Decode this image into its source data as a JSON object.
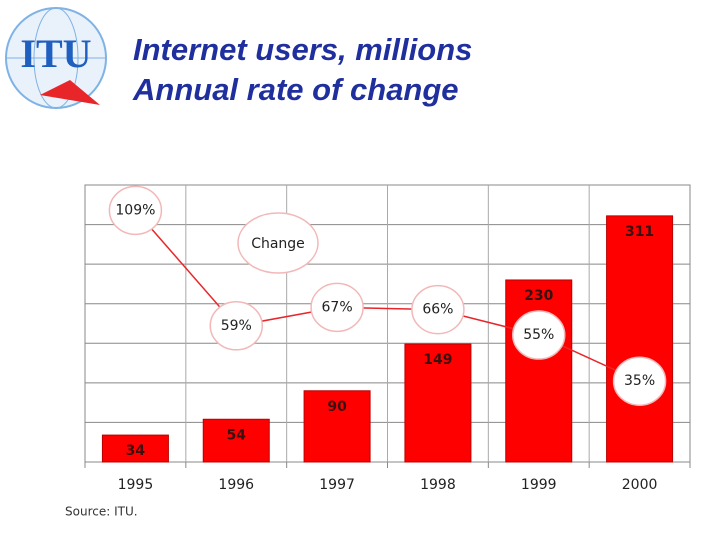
{
  "logo_text": "ITU",
  "chart_data": {
    "type": "bar",
    "title": "Internet users, millions",
    "subtitle": "Annual rate of change",
    "source": "Source: ITU.",
    "categories": [
      "1995",
      "1996",
      "1997",
      "1998",
      "1999",
      "2000"
    ],
    "series": [
      {
        "type": "bar",
        "color": "#ff0000",
        "values": [
          34,
          54,
          90,
          149,
          230,
          311
        ]
      },
      {
        "type": "line",
        "name": "Change",
        "color": "#e8262a",
        "axis": "y2",
        "values": [
          109,
          59,
          67,
          66,
          55,
          35
        ],
        "value_labels": [
          "109%",
          "59%",
          "67%",
          "66%",
          "55%",
          "35%"
        ]
      }
    ],
    "ylim": [
      0,
      350
    ],
    "yticks": [
      0,
      50,
      100,
      150,
      200,
      250,
      300,
      350
    ],
    "y2lim": [
      0,
      120
    ],
    "grid": true
  }
}
